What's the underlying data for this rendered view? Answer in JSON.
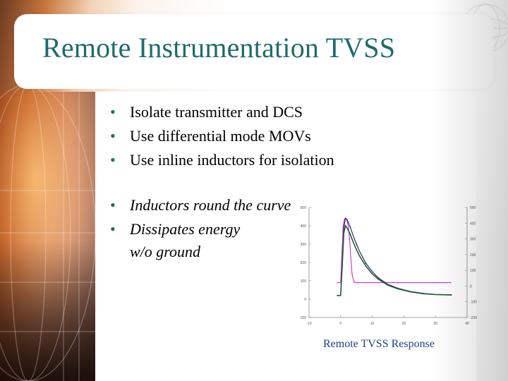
{
  "slide": {
    "title": "Remote Instrumentation TVSS",
    "bullets_group1": [
      "Isolate transmitter and DCS",
      "Use differential mode MOVs",
      "Use inline inductors for isolation"
    ],
    "bullets_group2": [
      "Inductors round the curve",
      "Dissipates energy"
    ],
    "bullet2_continuation": "w/o ground",
    "bullet_symbol": "•",
    "caption": "Remote TVSS Response",
    "colors": {
      "title": "#1f6b6b",
      "caption": "#1f3f8f",
      "trace_current": "#cc33cc",
      "trace_voltage": "#1a1a66",
      "trace_energy": "#1f5f2f"
    }
  },
  "chart_data": {
    "type": "line",
    "title": "",
    "xlabel": "",
    "ylabel": "",
    "grid": false,
    "x_ticks": [
      -10,
      0,
      10,
      20,
      30,
      40
    ],
    "y_left_ticks": [
      500,
      400,
      300,
      200,
      100,
      0,
      -100
    ],
    "y_right_ticks": [
      500,
      400,
      300,
      200,
      100,
      0,
      -100,
      -200
    ],
    "xlim": [
      -10,
      40
    ],
    "ylim_left": [
      -100,
      500
    ],
    "series": [
      {
        "color": "#cc33cc",
        "x": [
          -1,
          0,
          0.4,
          0.8,
          1.2,
          1.6,
          2.0,
          2.4,
          2.8,
          3.2,
          3.6,
          4.0,
          4.4,
          4.8,
          5.2,
          6,
          8,
          12,
          18,
          24,
          30,
          35
        ],
        "y": [
          90,
          90,
          250,
          400,
          435,
          440,
          430,
          400,
          330,
          230,
          140,
          105,
          92,
          90,
          90,
          90,
          90,
          90,
          90,
          90,
          90,
          90
        ]
      },
      {
        "color": "#1a1a66",
        "x": [
          -1,
          0,
          0.5,
          1,
          1.5,
          2,
          3,
          4,
          5,
          6,
          8,
          10,
          12,
          15,
          18,
          22,
          26,
          30,
          35
        ],
        "y": [
          20,
          20,
          200,
          390,
          440,
          435,
          395,
          345,
          300,
          260,
          195,
          150,
          115,
          80,
          60,
          42,
          32,
          26,
          24
        ]
      },
      {
        "color": "#1f5f2f",
        "x": [
          -1,
          0,
          0.5,
          1,
          1.5,
          2,
          3,
          4,
          5,
          6,
          8,
          10,
          12,
          15,
          18,
          22,
          26,
          30,
          35
        ],
        "y": [
          20,
          20,
          180,
          360,
          400,
          390,
          355,
          310,
          270,
          235,
          180,
          138,
          108,
          76,
          57,
          40,
          30,
          25,
          23
        ]
      }
    ]
  }
}
